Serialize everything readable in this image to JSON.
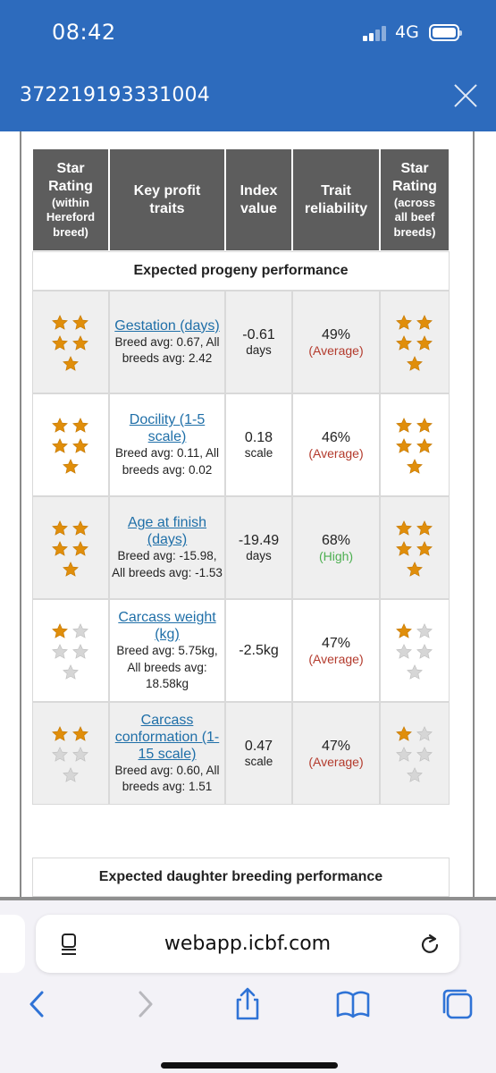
{
  "status_bar": {
    "time": "08:42",
    "network": "4G"
  },
  "header": {
    "title": "372219193331004"
  },
  "table": {
    "columns": [
      {
        "lines": [
          "Star",
          "Rating"
        ],
        "sub": [
          "(within",
          "Hereford",
          "breed)"
        ]
      },
      {
        "lines": [
          "Key profit",
          "traits"
        ],
        "sub": []
      },
      {
        "lines": [
          "Index",
          "value"
        ],
        "sub": []
      },
      {
        "lines": [
          "Trait",
          "reliability"
        ],
        "sub": []
      },
      {
        "lines": [
          "Star",
          "Rating"
        ],
        "sub": [
          "(across",
          "all beef",
          "breeds)"
        ]
      }
    ],
    "section_title": "Expected progeny performance",
    "rows": [
      {
        "trait": "Gestation (days)",
        "avg": "Breed avg: 0.67, All breeds avg: 2.42",
        "index": "-0.61",
        "unit": "days",
        "reliability": "49%",
        "level": "(Average)",
        "level_kind": "avg",
        "stars_within": 5,
        "stars_across": 5
      },
      {
        "trait": "Docility (1-5 scale)",
        "avg": "Breed avg: 0.11, All breeds avg: 0.02",
        "index": "0.18",
        "unit": "scale",
        "reliability": "46%",
        "level": "(Average)",
        "level_kind": "avg",
        "stars_within": 5,
        "stars_across": 5
      },
      {
        "trait": "Age at finish (days)",
        "avg": "Breed avg: -15.98, All breeds avg: -1.53",
        "index": "-19.49",
        "unit": "days",
        "reliability": "68%",
        "level": "(High)",
        "level_kind": "high",
        "stars_within": 5,
        "stars_across": 5
      },
      {
        "trait": "Carcass weight (kg)",
        "avg": "Breed avg: 5.75kg, All breeds avg: 18.58kg",
        "index": "-2.5kg",
        "unit": "",
        "reliability": "47%",
        "level": "(Average)",
        "level_kind": "avg",
        "stars_within": 1,
        "stars_across": 1
      },
      {
        "trait": "Carcass conformation (1-15 scale)",
        "avg": "Breed avg: 0.60, All breeds avg: 1.51",
        "index": "0.47",
        "unit": "scale",
        "reliability": "47%",
        "level": "(Average)",
        "level_kind": "avg",
        "stars_within": 2,
        "stars_across": 1
      }
    ],
    "next_section_title": "Expected daughter breeding performance"
  },
  "browser": {
    "url": "webapp.icbf.com"
  },
  "colors": {
    "header_bg": "#2d6bbd",
    "table_header_bg": "#5d5d5d",
    "star_filled": "#e08e0b",
    "star_empty": "#d6d6d6",
    "link": "#1f6fa8",
    "level_average": "#b33a2c",
    "level_high": "#4caf50",
    "toolbar_icon": "#2f73d6"
  },
  "icons": [
    "signal-icon",
    "battery-icon",
    "close-icon",
    "reader-icon",
    "reload-icon",
    "back-icon",
    "forward-icon",
    "share-icon",
    "bookmarks-icon",
    "tabs-icon"
  ]
}
